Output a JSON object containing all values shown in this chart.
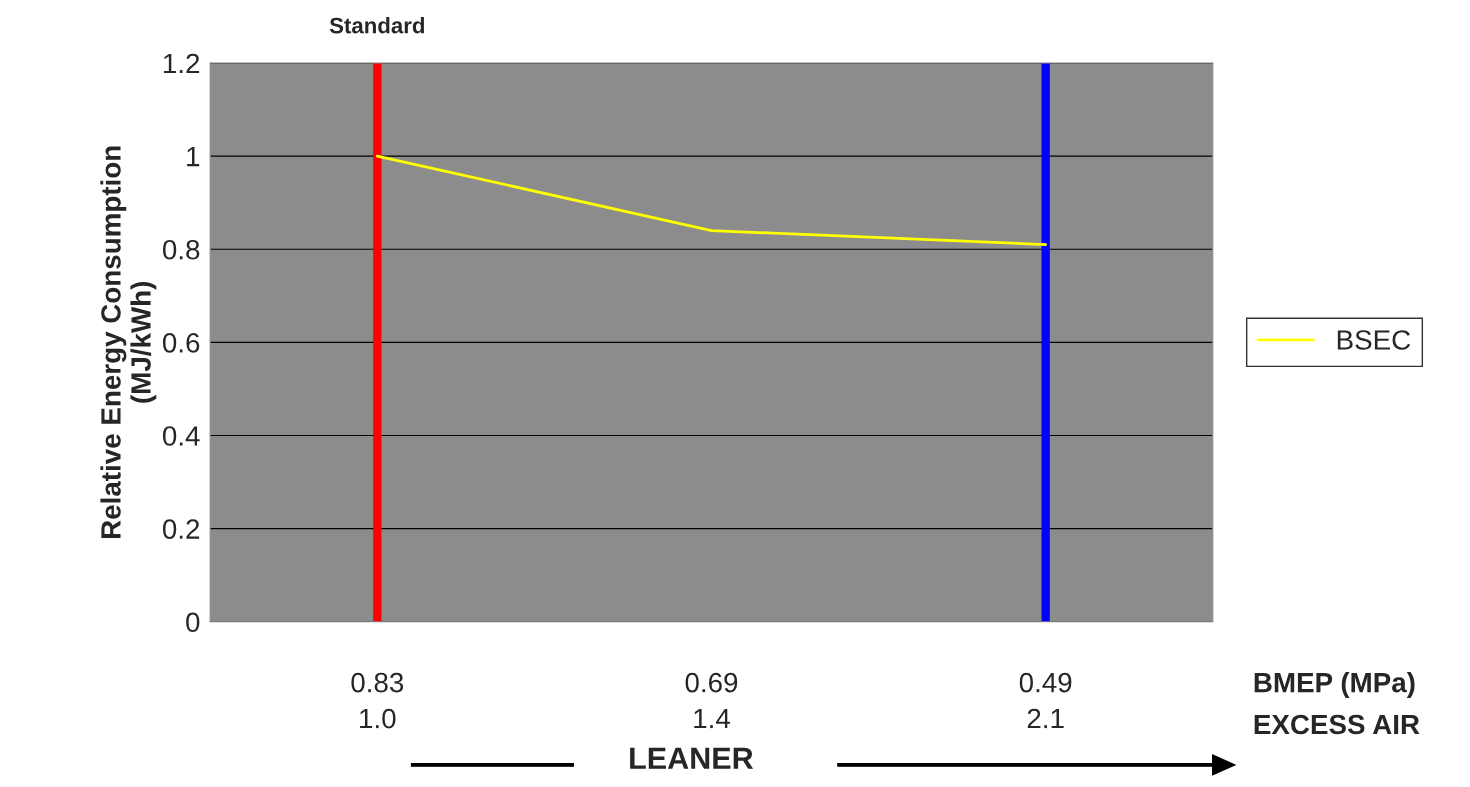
{
  "chart_data": {
    "type": "line",
    "ylabel": "Relative Energy Consumption\n(MJ/kWh)",
    "xlabel": "LEANER",
    "categories": [
      "0.83\n1.0",
      "0.69\n1.4",
      "0.49\n2.1"
    ],
    "series": [
      {
        "name": "BSEC",
        "color": "#ffff00",
        "values": [
          1.0,
          0.84,
          0.81
        ]
      }
    ],
    "ylim": [
      0,
      1.2
    ],
    "yticks": [
      0,
      0.2,
      0.4,
      0.6,
      0.8,
      1,
      1.2
    ],
    "grid": "y",
    "legend": "right",
    "ref_lines": [
      {
        "axis": "x",
        "value": "0.83\n1.0",
        "label": "Standard",
        "color": "#ff0000"
      },
      {
        "axis": "x",
        "value": "0.49\n2.1",
        "label": null,
        "color": "#0000ff"
      }
    ],
    "annotations": [
      "BMEP (MPa)",
      "EXCESS AIR"
    ]
  }
}
